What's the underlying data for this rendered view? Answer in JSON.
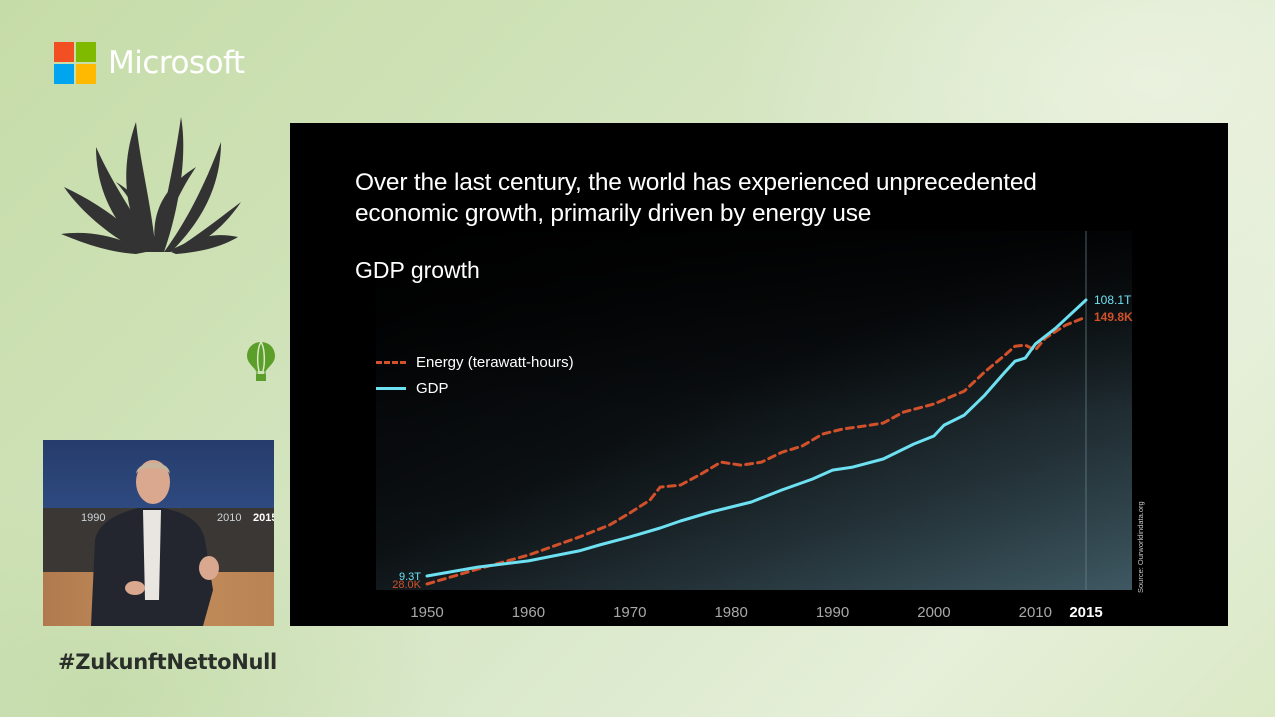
{
  "brand": {
    "name": "Microsoft",
    "logo_colors": [
      "#f25022",
      "#7fba00",
      "#00a4ef",
      "#ffb900"
    ]
  },
  "decor": {
    "plant_icon": "agave-icon",
    "balloon_icon": "hot-air-balloon-icon",
    "balloon_color": "#5c9e2a"
  },
  "video": {
    "screen_labels": [
      "1990",
      "2010",
      "2015"
    ]
  },
  "hashtag": "#ZukunftNettoNull",
  "slide": {
    "title_line1": "Over the last century, the world has experienced unprecedented",
    "title_line2": "economic growth, primarily driven by energy use",
    "subtitle": "GDP growth",
    "source": "Source: Ourworldindata.org"
  },
  "chart_data": {
    "type": "line",
    "title": "GDP growth",
    "xlabel": "",
    "ylabel": "",
    "x_ticks": [
      "1950",
      "1960",
      "1970",
      "1980",
      "1990",
      "2000",
      "2010",
      "2015"
    ],
    "highlight_tick": "2015",
    "xlim": [
      1950,
      2015
    ],
    "grid": false,
    "legend_position": "top-left",
    "series": [
      {
        "name": "Energy (terawatt-hours)",
        "style": "dashed",
        "color": "#d2502a",
        "unit": "K TWh",
        "start_label": "28.0K",
        "end_label": "149.8K",
        "ylim": [
          28.0,
          149.8
        ],
        "points": [
          [
            1950,
            28.0
          ],
          [
            1955,
            34.8
          ],
          [
            1960,
            41.2
          ],
          [
            1965,
            49.4
          ],
          [
            1968,
            54.9
          ],
          [
            1970,
            60.4
          ],
          [
            1972,
            66.3
          ],
          [
            1973,
            72.2
          ],
          [
            1975,
            73.1
          ],
          [
            1977,
            78.1
          ],
          [
            1979,
            83.6
          ],
          [
            1981,
            82.2
          ],
          [
            1983,
            83.6
          ],
          [
            1985,
            88.1
          ],
          [
            1987,
            90.9
          ],
          [
            1989,
            96.4
          ],
          [
            1991,
            98.7
          ],
          [
            1993,
            100.0
          ],
          [
            1995,
            101.4
          ],
          [
            1997,
            106.4
          ],
          [
            2000,
            110.1
          ],
          [
            2003,
            116.0
          ],
          [
            2005,
            124.7
          ],
          [
            2007,
            132.4
          ],
          [
            2008,
            136.5
          ],
          [
            2009,
            137.0
          ],
          [
            2010,
            134.7
          ],
          [
            2011,
            140.2
          ],
          [
            2013,
            146.1
          ],
          [
            2015,
            149.8
          ]
        ]
      },
      {
        "name": "GDP",
        "style": "solid",
        "color": "#6de0f2",
        "unit": "T USD",
        "start_label": "9.3T",
        "end_label": "108.1T",
        "ylim": [
          9.3,
          108.1
        ],
        "points": [
          [
            1950,
            9.3
          ],
          [
            1955,
            12.5
          ],
          [
            1960,
            14.7
          ],
          [
            1965,
            18.3
          ],
          [
            1967,
            20.4
          ],
          [
            1970,
            23.3
          ],
          [
            1973,
            26.5
          ],
          [
            1975,
            29.0
          ],
          [
            1978,
            32.2
          ],
          [
            1980,
            34.0
          ],
          [
            1982,
            35.8
          ],
          [
            1985,
            40.1
          ],
          [
            1988,
            44.0
          ],
          [
            1990,
            47.2
          ],
          [
            1992,
            48.3
          ],
          [
            1995,
            51.2
          ],
          [
            1998,
            56.5
          ],
          [
            2000,
            59.4
          ],
          [
            2001,
            63.3
          ],
          [
            2003,
            66.9
          ],
          [
            2005,
            74.0
          ],
          [
            2007,
            82.3
          ],
          [
            2008,
            86.2
          ],
          [
            2009,
            87.3
          ],
          [
            2010,
            92.3
          ],
          [
            2012,
            98.0
          ],
          [
            2015,
            108.1
          ]
        ]
      }
    ]
  }
}
